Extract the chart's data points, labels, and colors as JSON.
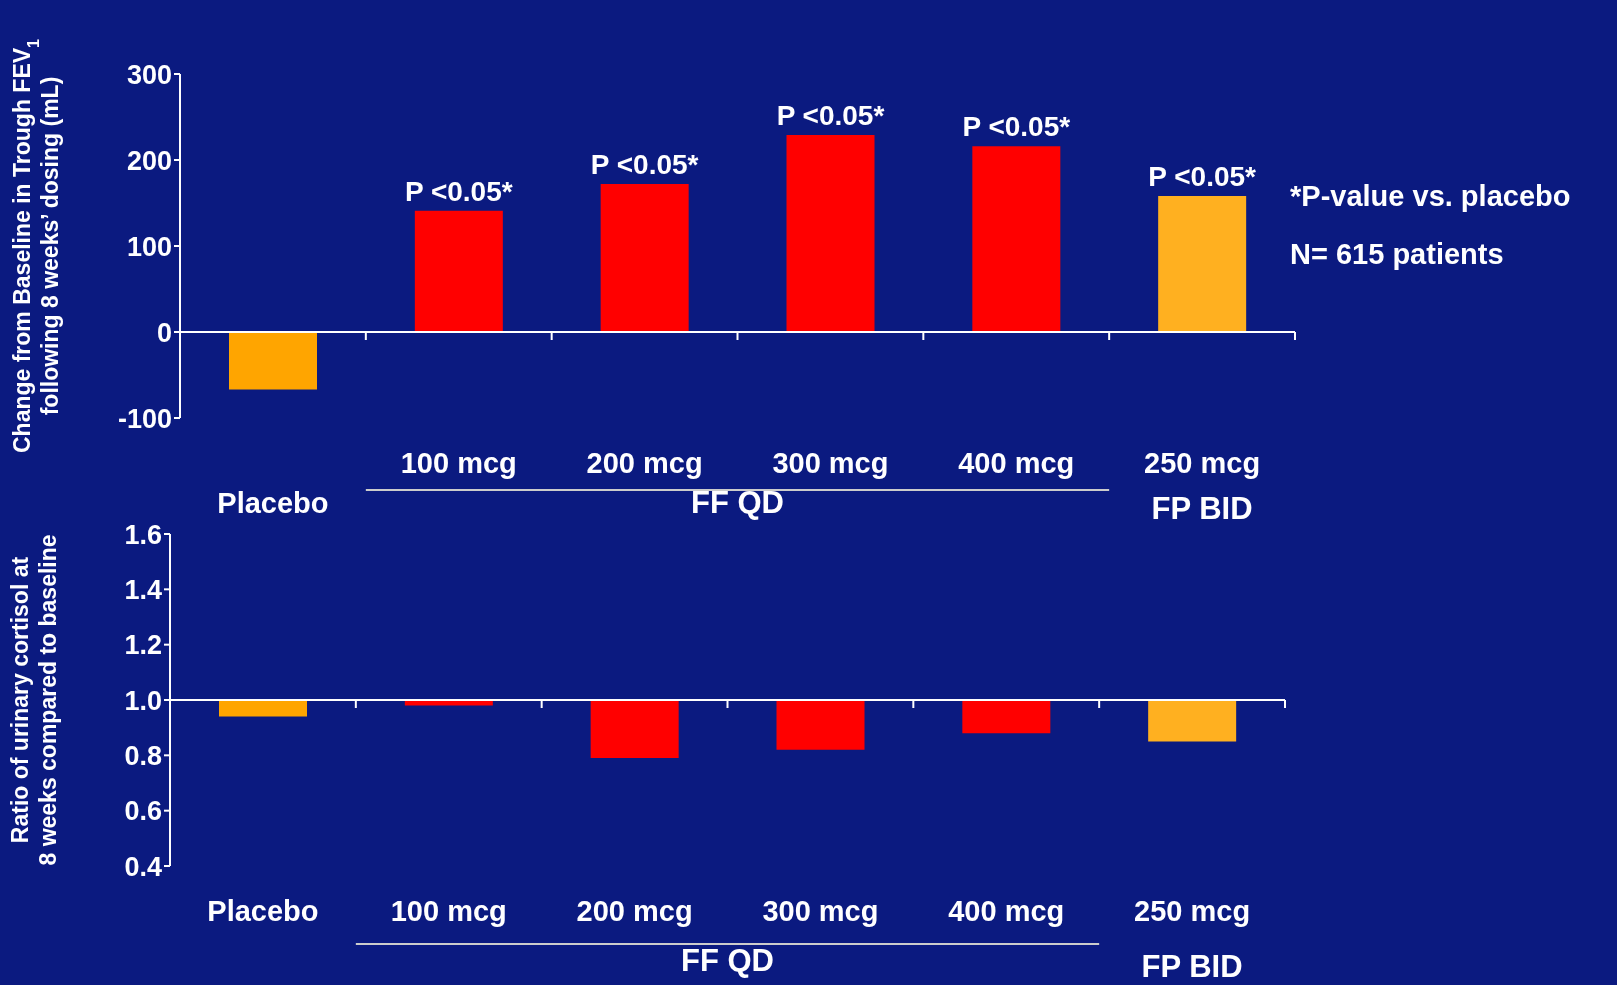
{
  "chart_data": [
    {
      "type": "bar",
      "ylabel": "Change from Baseline in Trough FEV$_{1}$ following 8 weeks’ dosing (mL)",
      "categories": [
        "Placebo",
        "100 mcg",
        "200 mcg",
        "300 mcg",
        "400 mcg",
        "250 mcg"
      ],
      "values": [
        -67,
        141,
        172,
        229,
        216,
        158
      ],
      "colors": [
        "#ffa500",
        "#ff0000",
        "#ff0000",
        "#ff0000",
        "#ff0000",
        "#ffb020"
      ],
      "ylim": [
        -100,
        300
      ],
      "yticks": [
        -100,
        0,
        100,
        200,
        300
      ],
      "value_labels": [
        null,
        "P <0.05*",
        "P <0.05*",
        "P <0.05*",
        "P <0.05*",
        "P <0.05*"
      ],
      "annotations": [
        "FF QD",
        "FP BID",
        "*P-value vs. placebo",
        "N= 615 patients"
      ]
    },
    {
      "type": "bar",
      "ylabel": "Ratio of urinary cortisol at 8 weeks compared to baseline",
      "categories": [
        "Placebo",
        "100 mcg",
        "200 mcg",
        "300 mcg",
        "400 mcg",
        "250 mcg"
      ],
      "values": [
        -0.06,
        -0.02,
        -0.21,
        -0.18,
        -0.12,
        -0.15
      ],
      "base": [
        1,
        1,
        1,
        1,
        1,
        1
      ],
      "colors": [
        "#ffa500",
        "#ff0000",
        "#ff0000",
        "#ff0000",
        "#ff0000",
        "#ffb020"
      ],
      "ylim": [
        0.4,
        1.6
      ],
      "yticks": [
        {
          "value": 0.4,
          "label": "0.4"
        },
        {
          "value": 0.6,
          "label": "0.6"
        },
        {
          "value": 0.8,
          "label": "0.8"
        },
        {
          "value": 1.0,
          "label": "1.0"
        },
        {
          "value": 1.2,
          "label": "1.2"
        },
        {
          "value": 1.4,
          "label": "1.4"
        },
        {
          "value": 1.6,
          "label": "1.6"
        }
      ],
      "annotations": [
        "FF QD",
        "FP BID"
      ]
    }
  ]
}
